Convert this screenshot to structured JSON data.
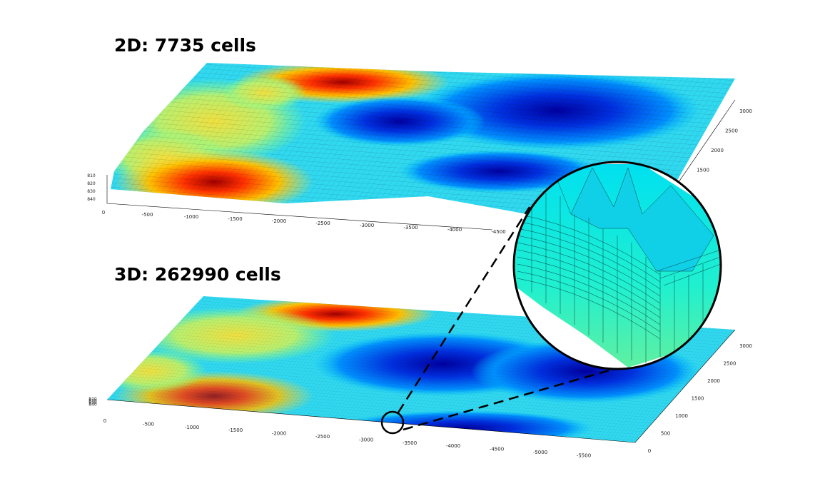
{
  "panels": [
    {
      "title": "2D: 7735 cells",
      "x_ticks": [
        "0",
        "-500",
        "-1000",
        "-1500",
        "-2000",
        "-2500",
        "-3000",
        "-3500",
        "-4000",
        "-4500"
      ],
      "y_ticks": [
        "3000",
        "2500",
        "2000",
        "1500"
      ],
      "z_ticks": [
        "810",
        "820",
        "830",
        "840"
      ]
    },
    {
      "title": "3D: 262990 cells",
      "x_ticks": [
        "0",
        "-500",
        "-1000",
        "-1500",
        "-2000",
        "-2500",
        "-3000",
        "-3500",
        "-4000",
        "-4500",
        "-5000",
        "-5500"
      ],
      "y_ticks": [
        "0",
        "500",
        "1000",
        "1500",
        "2000",
        "2500",
        "3000"
      ],
      "z_ticks": [
        "810",
        "820",
        "830",
        "840"
      ]
    }
  ]
}
